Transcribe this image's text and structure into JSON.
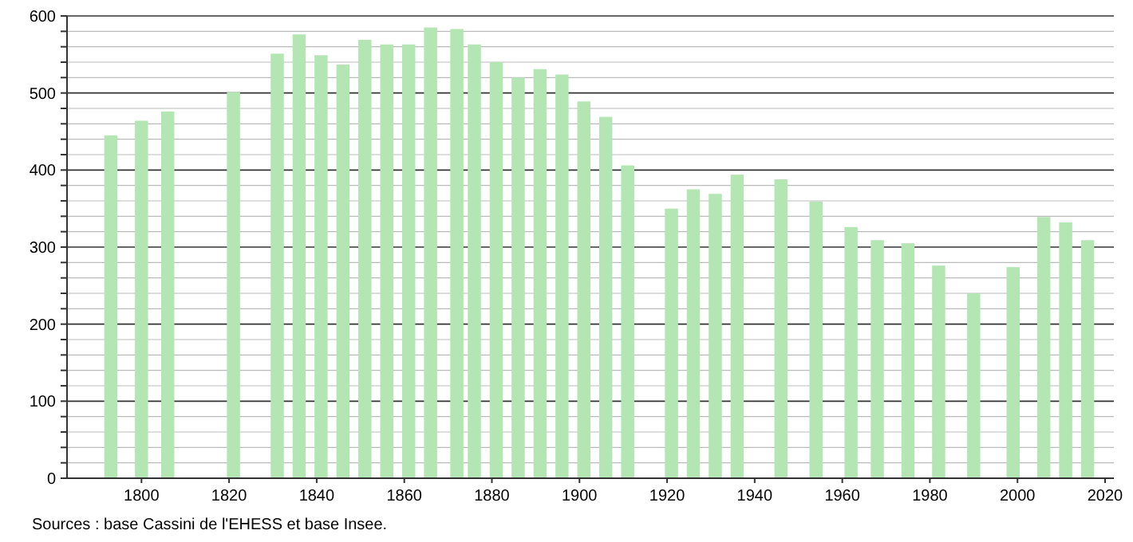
{
  "chart_data": {
    "type": "bar",
    "x": [
      1793,
      1800,
      1806,
      1821,
      1831,
      1836,
      1841,
      1846,
      1851,
      1856,
      1861,
      1866,
      1872,
      1876,
      1881,
      1886,
      1891,
      1896,
      1901,
      1906,
      1911,
      1921,
      1926,
      1931,
      1936,
      1946,
      1954,
      1962,
      1968,
      1975,
      1982,
      1990,
      1999,
      2006,
      2011,
      2016
    ],
    "values": [
      445,
      464,
      476,
      501,
      551,
      576,
      549,
      537,
      569,
      563,
      563,
      585,
      583,
      563,
      540,
      520,
      531,
      524,
      489,
      469,
      406,
      350,
      375,
      369,
      394,
      388,
      359,
      326,
      309,
      305,
      276,
      240,
      274,
      339,
      332,
      309
    ],
    "color": "#b3e6b3",
    "xlim": [
      1783,
      2022
    ],
    "xticks": [
      1800,
      1820,
      1840,
      1860,
      1880,
      1900,
      1920,
      1940,
      1960,
      1980,
      2000,
      2020
    ],
    "ylim": [
      0,
      600
    ],
    "yticks": [
      0,
      {
        "value": 20,
        "label": null
      },
      {
        "value": 40,
        "label": null
      },
      {
        "value": 60,
        "label": null
      },
      {
        "value": 80,
        "label": null
      },
      100,
      {
        "value": 120,
        "label": null
      },
      {
        "value": 140,
        "label": null
      },
      {
        "value": 160,
        "label": null
      },
      {
        "value": 180,
        "label": null
      },
      200,
      {
        "value": 220,
        "label": null
      },
      {
        "value": 240,
        "label": null
      },
      {
        "value": 260,
        "label": null
      },
      {
        "value": 280,
        "label": null
      },
      300,
      {
        "value": 320,
        "label": null
      },
      {
        "value": 340,
        "label": null
      },
      {
        "value": 360,
        "label": null
      },
      {
        "value": 380,
        "label": null
      },
      400,
      {
        "value": 420,
        "label": null
      },
      {
        "value": 440,
        "label": null
      },
      {
        "value": 460,
        "label": null
      },
      {
        "value": 480,
        "label": null
      },
      500,
      {
        "value": 520,
        "label": null
      },
      {
        "value": 540,
        "label": null
      },
      {
        "value": 560,
        "label": null
      },
      {
        "value": 580,
        "label": null
      },
      600
    ],
    "grid": true,
    "annotations": [
      "Sources : base Cassini de l'EHESS et base Insee."
    ]
  }
}
